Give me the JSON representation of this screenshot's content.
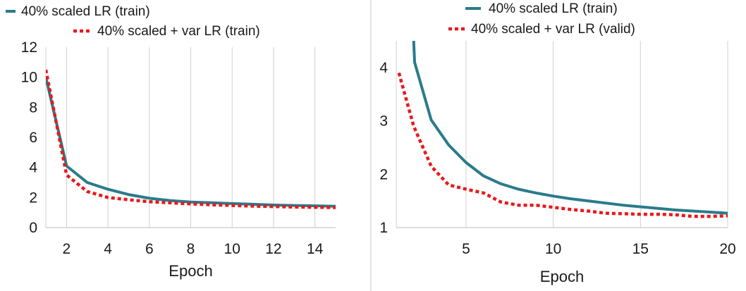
{
  "colors": {
    "series_solid": "#2a7b8b",
    "series_dotted": "#e8191c",
    "grid": "#d0d0d0",
    "divider": "#c8c8c8"
  },
  "chart_data": [
    {
      "type": "line",
      "title": "",
      "xlabel": "Epoch",
      "ylabel": "",
      "xlim": [
        1,
        15
      ],
      "ylim": [
        0,
        12
      ],
      "xticks": [
        2,
        4,
        6,
        8,
        10,
        12,
        14
      ],
      "yticks": [
        0,
        2,
        4,
        6,
        8,
        10,
        12
      ],
      "grid": "vertical",
      "legend_position": "top-left",
      "series": [
        {
          "name": "40% scaled LR (train)",
          "style": "solid",
          "x": [
            1,
            2,
            3,
            4,
            5,
            6,
            7,
            8,
            9,
            10,
            11,
            12,
            13,
            14,
            15
          ],
          "y": [
            10.0,
            4.1,
            3.0,
            2.55,
            2.2,
            1.95,
            1.8,
            1.7,
            1.65,
            1.6,
            1.55,
            1.5,
            1.47,
            1.45,
            1.42
          ]
        },
        {
          "name": "40% scaled + var LR (train)",
          "style": "dotted",
          "x": [
            1,
            2,
            3,
            4,
            5,
            6,
            7,
            8,
            9,
            10,
            11,
            12,
            13,
            14,
            15
          ],
          "y": [
            10.5,
            3.5,
            2.4,
            2.0,
            1.85,
            1.72,
            1.65,
            1.58,
            1.52,
            1.47,
            1.43,
            1.4,
            1.37,
            1.35,
            1.33
          ]
        }
      ]
    },
    {
      "type": "line",
      "title": "",
      "xlabel": "Epoch",
      "ylabel": "",
      "xlim": [
        1,
        20
      ],
      "ylim": [
        1,
        4.5
      ],
      "xticks": [
        5,
        10,
        15,
        20
      ],
      "yticks": [
        1,
        2,
        3,
        4
      ],
      "grid": "vertical",
      "legend_position": "top-center",
      "series": [
        {
          "name": "40% scaled LR (train)",
          "style": "solid",
          "x": [
            2,
            2.05,
            3,
            4,
            5,
            6,
            7,
            8,
            9,
            10,
            11,
            12,
            13,
            14,
            15,
            16,
            17,
            18,
            19,
            20
          ],
          "y": [
            4.5,
            4.1,
            3.02,
            2.55,
            2.22,
            1.97,
            1.82,
            1.72,
            1.65,
            1.59,
            1.54,
            1.5,
            1.46,
            1.42,
            1.39,
            1.36,
            1.33,
            1.31,
            1.29,
            1.27
          ]
        },
        {
          "name": "40% scaled + var LR (valid)",
          "style": "dotted",
          "x": [
            1.15,
            2,
            3,
            4,
            5,
            6,
            7,
            8,
            9,
            10,
            11,
            12,
            13,
            14,
            15,
            16,
            17,
            18,
            19,
            20
          ],
          "y": [
            3.9,
            2.9,
            2.15,
            1.8,
            1.72,
            1.65,
            1.48,
            1.42,
            1.42,
            1.38,
            1.34,
            1.31,
            1.27,
            1.26,
            1.25,
            1.25,
            1.24,
            1.21,
            1.21,
            1.22
          ]
        }
      ]
    }
  ]
}
